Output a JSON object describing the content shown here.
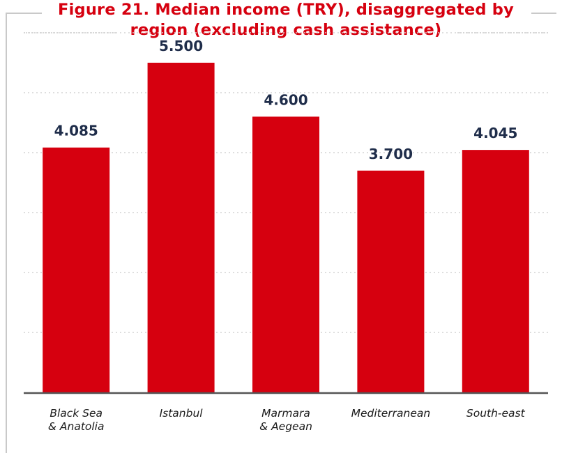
{
  "chart_data": {
    "type": "bar",
    "title_line1": "Figure 21. Median income (TRY), disaggregated by",
    "title_line2": "region (excluding cash assistance)",
    "categories": [
      [
        "Black Sea",
        "& Anatolia"
      ],
      [
        "Istanbul"
      ],
      [
        "Marmara",
        "& Aegean"
      ],
      [
        "Mediterranean"
      ],
      [
        "South-east"
      ]
    ],
    "values": [
      4085,
      5500,
      4600,
      3700,
      4045
    ],
    "value_labels": [
      "4.085",
      "5.500",
      "4.600",
      "3.700",
      "4.045"
    ],
    "ylim": [
      0,
      6000
    ],
    "grid": true,
    "bar_color": "#d6000f",
    "label_color": "#1f2d4a",
    "title_color": "#d6000f"
  }
}
